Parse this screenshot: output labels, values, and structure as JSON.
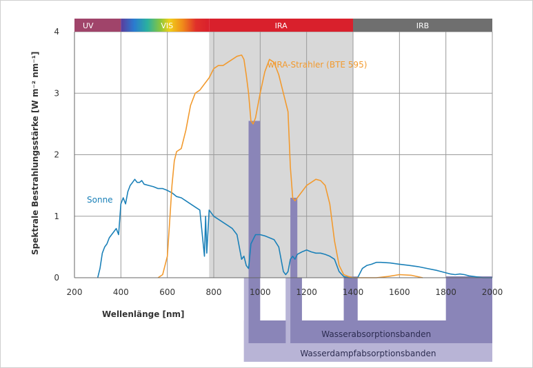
{
  "chart_data": {
    "type": "line",
    "xlabel": "Wellenlänge [nm]",
    "ylabel": "Spektrale Bestrahlungsstärke [W m⁻² nm⁻¹]",
    "xlim": [
      200,
      2000
    ],
    "ylim": [
      0,
      4
    ],
    "x_ticks": [
      "200",
      "400",
      "600",
      "800",
      "1000",
      "1200",
      "1400",
      "1600",
      "1800",
      "2000"
    ],
    "y_ticks": [
      "0",
      "1",
      "2",
      "3",
      "4"
    ],
    "grid": true,
    "bands": [
      {
        "label": "UV",
        "from": 200,
        "to": 400,
        "color": "#a0446a"
      },
      {
        "label": "VIS",
        "from": 400,
        "to": 780,
        "color": "spectrum"
      },
      {
        "label": "IRA",
        "from": 780,
        "to": 1400,
        "color": "#d9202c"
      },
      {
        "label": "IRB",
        "from": 1400,
        "to": 2000,
        "color": "#6f6f6f"
      }
    ],
    "ira_region": {
      "from": 780,
      "to": 1400,
      "color": "#d8d8d8"
    },
    "series": [
      {
        "name": "Sonne",
        "color": "#1a80b8",
        "x": [
          300,
          310,
          320,
          330,
          340,
          350,
          360,
          370,
          380,
          390,
          400,
          410,
          420,
          430,
          440,
          450,
          460,
          470,
          480,
          490,
          500,
          520,
          540,
          560,
          580,
          600,
          620,
          640,
          660,
          680,
          700,
          720,
          740,
          760,
          765,
          770,
          780,
          800,
          820,
          840,
          860,
          880,
          900,
          920,
          930,
          940,
          950,
          960,
          980,
          1000,
          1020,
          1040,
          1060,
          1080,
          1100,
          1110,
          1120,
          1130,
          1140,
          1150,
          1160,
          1180,
          1200,
          1220,
          1240,
          1260,
          1280,
          1300,
          1320,
          1340,
          1360,
          1380,
          1400,
          1420,
          1440,
          1460,
          1480,
          1500,
          1520,
          1560,
          1600,
          1640,
          1680,
          1720,
          1760,
          1800,
          1820,
          1840,
          1860,
          1880,
          1900,
          1920,
          1960,
          2000
        ],
        "y": [
          0.0,
          0.15,
          0.4,
          0.5,
          0.55,
          0.65,
          0.7,
          0.75,
          0.8,
          0.7,
          1.2,
          1.3,
          1.2,
          1.4,
          1.5,
          1.55,
          1.6,
          1.55,
          1.55,
          1.58,
          1.52,
          1.5,
          1.48,
          1.45,
          1.45,
          1.42,
          1.38,
          1.32,
          1.3,
          1.25,
          1.2,
          1.15,
          1.1,
          0.35,
          1.0,
          0.4,
          1.1,
          1.0,
          0.95,
          0.9,
          0.85,
          0.8,
          0.7,
          0.3,
          0.35,
          0.2,
          0.15,
          0.55,
          0.7,
          0.7,
          0.68,
          0.65,
          0.62,
          0.5,
          0.1,
          0.05,
          0.1,
          0.3,
          0.35,
          0.3,
          0.38,
          0.42,
          0.45,
          0.42,
          0.4,
          0.4,
          0.38,
          0.35,
          0.3,
          0.1,
          0.02,
          0.0,
          0.0,
          0.0,
          0.15,
          0.2,
          0.22,
          0.25,
          0.25,
          0.24,
          0.22,
          0.2,
          0.18,
          0.15,
          0.12,
          0.08,
          0.06,
          0.05,
          0.06,
          0.05,
          0.03,
          0.02,
          0.0,
          0.0
        ]
      },
      {
        "name": "wIRA-Strahler (BTE 595)",
        "color": "#f29a2e",
        "x": [
          560,
          580,
          600,
          610,
          620,
          630,
          640,
          660,
          680,
          700,
          720,
          740,
          760,
          780,
          800,
          820,
          840,
          860,
          880,
          900,
          920,
          930,
          940,
          950,
          960,
          970,
          980,
          1000,
          1020,
          1040,
          1060,
          1080,
          1100,
          1120,
          1130,
          1140,
          1150,
          1160,
          1170,
          1180,
          1200,
          1220,
          1240,
          1260,
          1280,
          1300,
          1320,
          1340,
          1360,
          1380,
          1400,
          1450,
          1500,
          1550,
          1600,
          1650,
          1700
        ],
        "y": [
          0.0,
          0.05,
          0.35,
          0.9,
          1.5,
          1.9,
          2.05,
          2.1,
          2.4,
          2.8,
          3.0,
          3.05,
          3.15,
          3.25,
          3.4,
          3.45,
          3.45,
          3.5,
          3.55,
          3.6,
          3.62,
          3.55,
          3.3,
          3.0,
          2.55,
          2.5,
          2.6,
          3.0,
          3.35,
          3.55,
          3.5,
          3.3,
          3.0,
          2.7,
          1.8,
          1.3,
          1.25,
          1.3,
          1.35,
          1.4,
          1.5,
          1.55,
          1.6,
          1.58,
          1.5,
          1.2,
          0.6,
          0.2,
          0.05,
          0.02,
          0.0,
          0.0,
          0.0,
          0.02,
          0.05,
          0.04,
          0.0
        ]
      }
    ],
    "absorption_bands": {
      "wasserabsorption": {
        "label": "Wasserabsorptionsbanden",
        "color": "#8a85b8",
        "ranges": [
          [
            950,
            1000
          ],
          [
            1130,
            1160
          ],
          [
            1360,
            1420
          ],
          [
            1800,
            2000
          ]
        ]
      },
      "wasserdampf": {
        "label": "Wasserdampfabsorptionsbanden",
        "color": "#b8b4d6",
        "ranges": [
          [
            930,
            2000
          ]
        ]
      }
    }
  }
}
